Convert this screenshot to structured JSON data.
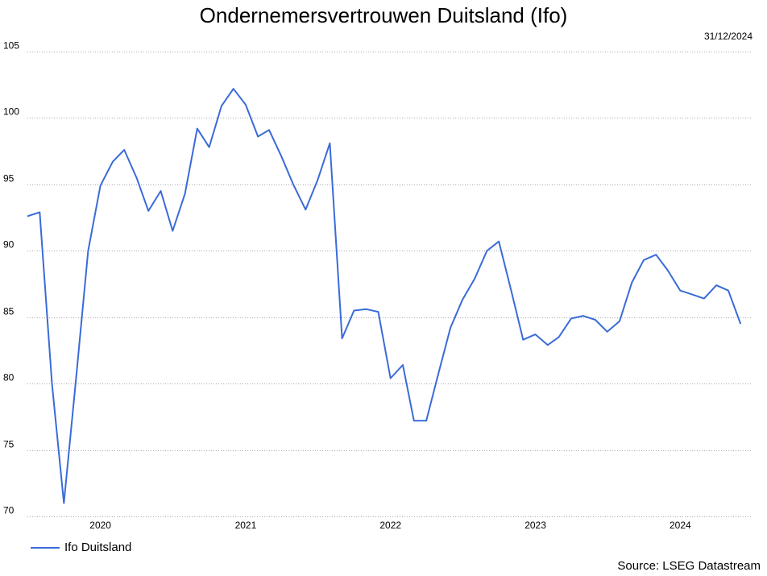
{
  "title": "Ondernemersvertrouwen Duitsland (Ifo)",
  "date_label": "31/12/2024",
  "source": "Source: LSEG Datastream",
  "colors": {
    "series": "#3a6bd8",
    "grid": "#aaaaaa"
  },
  "chart_data": {
    "type": "line",
    "ylim": [
      70,
      105
    ],
    "yticks": [
      70,
      75,
      80,
      85,
      90,
      95,
      100,
      105
    ],
    "xlim": [
      "2019-07-01",
      "2024-07-01"
    ],
    "xticks": [
      {
        "label": "2020",
        "x": "2020-01-01"
      },
      {
        "label": "2021",
        "x": "2021-01-01"
      },
      {
        "label": "2022",
        "x": "2022-01-01"
      },
      {
        "label": "2023",
        "x": "2023-01-01"
      },
      {
        "label": "2024",
        "x": "2024-01-01"
      }
    ],
    "grid": true,
    "legend_position": "bottom-left",
    "series": [
      {
        "name": "Ifo Duitsland",
        "points": [
          [
            "2019-07-01",
            92.6
          ],
          [
            "2019-08-01",
            92.9
          ],
          [
            "2019-09-01",
            80.0
          ],
          [
            "2019-10-01",
            71.0
          ],
          [
            "2019-11-01",
            80.5
          ],
          [
            "2019-12-01",
            90.0
          ],
          [
            "2020-01-01",
            94.9
          ],
          [
            "2020-02-01",
            96.7
          ],
          [
            "2020-03-01",
            97.6
          ],
          [
            "2020-04-01",
            95.5
          ],
          [
            "2020-05-01",
            93.0
          ],
          [
            "2020-06-01",
            94.5
          ],
          [
            "2020-07-01",
            91.5
          ],
          [
            "2020-08-01",
            94.3
          ],
          [
            "2020-09-01",
            99.2
          ],
          [
            "2020-10-01",
            97.8
          ],
          [
            "2020-11-01",
            100.9
          ],
          [
            "2020-12-01",
            102.2
          ],
          [
            "2021-01-01",
            101.0
          ],
          [
            "2021-02-01",
            98.6
          ],
          [
            "2021-03-01",
            99.1
          ],
          [
            "2021-04-01",
            97.1
          ],
          [
            "2021-05-01",
            95.0
          ],
          [
            "2021-06-01",
            93.1
          ],
          [
            "2021-07-01",
            95.3
          ],
          [
            "2021-08-01",
            98.1
          ],
          [
            "2021-09-01",
            83.4
          ],
          [
            "2021-10-01",
            85.5
          ],
          [
            "2021-11-01",
            85.6
          ],
          [
            "2021-12-01",
            85.4
          ],
          [
            "2022-01-01",
            80.4
          ],
          [
            "2022-02-01",
            81.4
          ],
          [
            "2022-03-01",
            77.2
          ],
          [
            "2022-04-01",
            77.2
          ],
          [
            "2022-05-01",
            80.7
          ],
          [
            "2022-06-01",
            84.2
          ],
          [
            "2022-07-01",
            86.3
          ],
          [
            "2022-08-01",
            87.9
          ],
          [
            "2022-09-01",
            90.0
          ],
          [
            "2022-10-01",
            90.7
          ],
          [
            "2022-11-01",
            87.0
          ],
          [
            "2022-12-01",
            83.3
          ],
          [
            "2023-01-01",
            83.7
          ],
          [
            "2023-02-01",
            82.9
          ],
          [
            "2023-03-01",
            83.5
          ],
          [
            "2023-04-01",
            84.9
          ],
          [
            "2023-05-01",
            85.1
          ],
          [
            "2023-06-01",
            84.8
          ],
          [
            "2023-07-01",
            83.9
          ],
          [
            "2023-08-01",
            84.7
          ],
          [
            "2023-09-01",
            87.6
          ],
          [
            "2023-10-01",
            89.3
          ],
          [
            "2023-11-01",
            89.7
          ],
          [
            "2023-12-01",
            88.5
          ],
          [
            "2024-01-01",
            87.0
          ],
          [
            "2024-02-01",
            86.7
          ],
          [
            "2024-03-01",
            86.4
          ],
          [
            "2024-04-01",
            87.4
          ],
          [
            "2024-05-01",
            87.0
          ],
          [
            "2024-06-01",
            84.5
          ]
        ]
      }
    ]
  }
}
